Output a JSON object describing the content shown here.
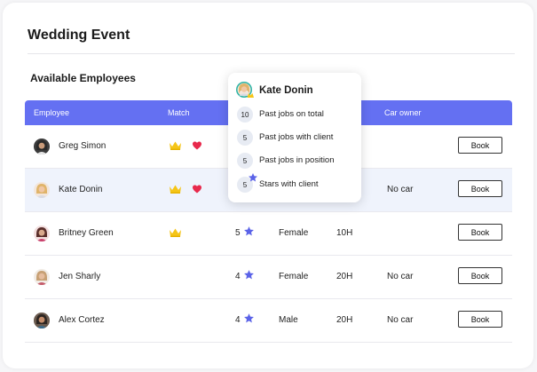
{
  "page": {
    "title": "Wedding Event",
    "subtitle": "Available Employees"
  },
  "table": {
    "headers": {
      "employee": "Employee",
      "match": "Match",
      "car_owner": "Car owner"
    },
    "rows": [
      {
        "name": "Greg Simon",
        "crown": true,
        "heart": true,
        "rating": "",
        "gender": "",
        "hours": "",
        "car": "",
        "book": "Book",
        "avatar": "man-dark"
      },
      {
        "name": "Kate Donin",
        "crown": true,
        "heart": true,
        "rating": "",
        "gender": "",
        "hours": "",
        "car": "No car",
        "book": "Book",
        "avatar": "woman-blonde"
      },
      {
        "name": "Britney Green",
        "crown": true,
        "heart": false,
        "rating": "5",
        "gender": "Female",
        "hours": "10H",
        "car": "",
        "book": "Book",
        "avatar": "woman-dark"
      },
      {
        "name": "Jen Sharly",
        "crown": false,
        "heart": false,
        "rating": "4",
        "gender": "Female",
        "hours": "20H",
        "car": "No car",
        "book": "Book",
        "avatar": "woman-light"
      },
      {
        "name": "Alex Cortez",
        "crown": false,
        "heart": false,
        "rating": "4",
        "gender": "Male",
        "hours": "20H",
        "car": "No car",
        "book": "Book",
        "avatar": "man-beard"
      }
    ]
  },
  "popup": {
    "name": "Kate Donin",
    "stats": [
      {
        "value": "10",
        "label": "Past jobs on total"
      },
      {
        "value": "5",
        "label": "Past jobs with client"
      },
      {
        "value": "5",
        "label": "Past jobs in position"
      },
      {
        "value": "5",
        "label": "Stars with client"
      }
    ]
  },
  "colors": {
    "header": "#6470f2",
    "crown": "#f5c518",
    "heart": "#e8294c",
    "star": "#5b63e8",
    "selected_row": "#eff3fc"
  },
  "icons": {
    "crown": "crown-icon",
    "heart": "heart-icon",
    "star": "star-icon"
  }
}
